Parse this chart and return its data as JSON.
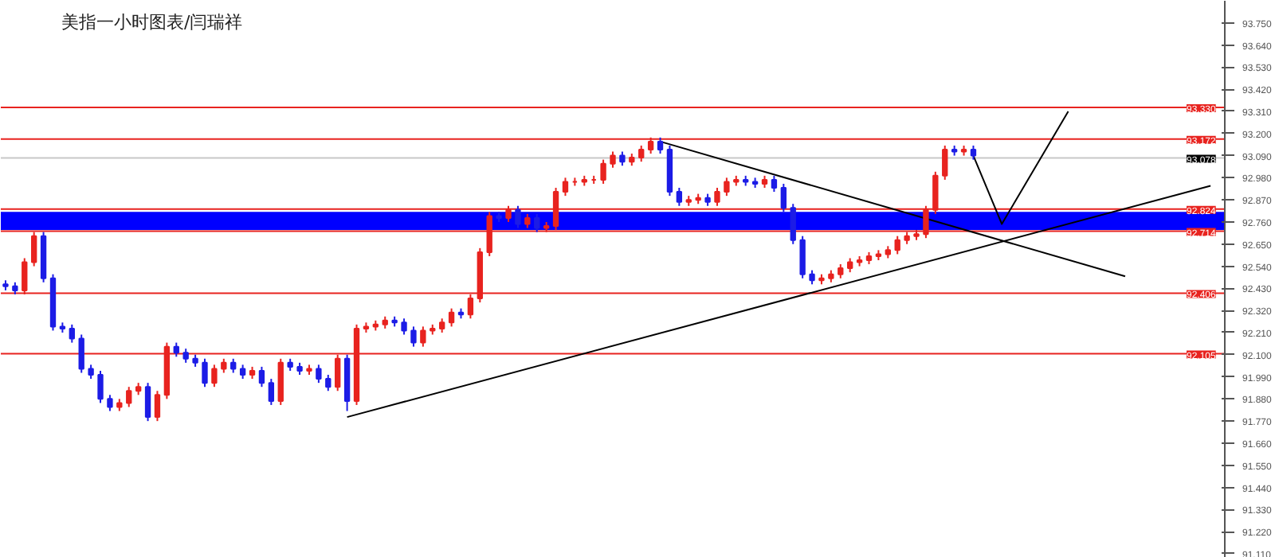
{
  "chart_data": {
    "type": "candlestick",
    "title": "美指一小时图表/闫瑞祥",
    "ylim": [
      91.09,
      93.86
    ],
    "yticks": [
      {
        "value": 91.11,
        "label": "91.110"
      },
      {
        "value": 91.22,
        "label": "91.220"
      },
      {
        "value": 91.33,
        "label": "91.330"
      },
      {
        "value": 91.44,
        "label": "91.440"
      },
      {
        "value": 91.55,
        "label": "91.550"
      },
      {
        "value": 91.66,
        "label": "91.660"
      },
      {
        "value": 91.77,
        "label": "91.770"
      },
      {
        "value": 91.88,
        "label": "91.880"
      },
      {
        "value": 91.99,
        "label": "91.990"
      },
      {
        "value": 92.1,
        "label": "92.100"
      },
      {
        "value": 92.21,
        "label": "92.210"
      },
      {
        "value": 92.32,
        "label": "92.320"
      },
      {
        "value": 92.43,
        "label": "92.430"
      },
      {
        "value": 92.54,
        "label": "92.540"
      },
      {
        "value": 92.65,
        "label": "92.650"
      },
      {
        "value": 92.76,
        "label": "92.760"
      },
      {
        "value": 92.87,
        "label": "92.870"
      },
      {
        "value": 92.98,
        "label": "92.980"
      },
      {
        "value": 93.09,
        "label": "93.090"
      },
      {
        "value": 93.2,
        "label": "93.200"
      },
      {
        "value": 93.31,
        "label": "93.310"
      },
      {
        "value": 93.42,
        "label": "93.420"
      },
      {
        "value": 93.53,
        "label": "93.530"
      },
      {
        "value": 93.64,
        "label": "93.640"
      },
      {
        "value": 93.75,
        "label": "93.750"
      }
    ],
    "tick_labels": "y",
    "grid": false,
    "colors": [
      "#1c1ce6",
      "#1c1ce6",
      "#e8231f",
      "#e8231f",
      "#1c1ce6",
      "#1c1ce6",
      "#1c1ce6",
      "#1c1ce6",
      "#1c1ce6",
      "#1c1ce6",
      "#1c1ce6",
      "#1c1ce6",
      "#e8231f",
      "#e8231f",
      "#e8231f",
      "#1c1ce6",
      "#e8231f",
      "#e8231f",
      "#1c1ce6",
      "#1c1ce6",
      "#1c1ce6",
      "#1c1ce6",
      "#e8231f",
      "#e8231f",
      "#1c1ce6",
      "#1c1ce6",
      "#e8231f",
      "#1c1ce6",
      "#1c1ce6",
      "#e8231f",
      "#1c1ce6",
      "#1c1ce6",
      "#e8231f",
      "#1c1ce6",
      "#1c1ce6",
      "#e8231f",
      "#1c1ce6",
      "#e8231f",
      "#e8231f",
      "#e8231f",
      "#e8231f",
      "#1c1ce6",
      "#1c1ce6",
      "#1c1ce6",
      "#e8231f",
      "#e8231f",
      "#e8231f",
      "#e8231f",
      "#1c1ce6",
      "#e8231f",
      "#e8231f",
      "#e8231f",
      "#1c1ce6",
      "#e8231f",
      "#1c1ce6",
      "#e8231f",
      "#1c1ce6",
      "#e8231f",
      "#e8231f",
      "#e8231f",
      "#e8231f",
      "#e8231f",
      "#e8231f",
      "#e8231f",
      "#e8231f",
      "#1c1ce6",
      "#e8231f",
      "#e8231f",
      "#e8231f",
      "#1c1ce6",
      "#1c1ce6",
      "#1c1ce6",
      "#e8231f",
      "#e8231f",
      "#1c1ce6",
      "#e8231f",
      "#e8231f",
      "#e8231f",
      "#1c1ce6",
      "#1c1ce6",
      "#e8231f",
      "#1c1ce6",
      "#1c1ce6",
      "#1c1ce6",
      "#1c1ce6",
      "#1c1ce6",
      "#e8231f",
      "#e8231f",
      "#e8231f",
      "#e8231f",
      "#e8231f",
      "#e8231f",
      "#e8231f",
      "#e8231f",
      "#e8231f",
      "#e8231f",
      "#e8231f",
      "#e8231f",
      "#e8231f",
      "#e8231f",
      "#1c1ce6",
      "#e8231f",
      "#1c1ce6",
      null,
      null,
      null,
      null,
      null,
      null,
      null,
      null,
      null,
      null,
      null,
      null,
      null,
      null,
      null,
      null,
      null,
      null,
      null,
      null,
      null,
      null,
      null,
      null,
      null,
      null
    ],
    "categories": [
      null,
      null,
      null,
      null,
      null,
      null,
      null,
      null,
      null,
      null,
      null,
      null,
      null,
      null,
      null,
      null,
      null,
      null,
      null,
      null,
      null,
      null,
      null,
      null,
      null,
      null,
      null,
      null,
      null,
      null,
      null,
      null,
      null,
      null,
      null,
      null,
      null,
      null,
      null,
      null,
      null,
      null,
      null,
      null,
      null,
      null,
      null,
      null,
      null,
      null,
      null,
      null,
      null,
      null,
      null,
      null,
      null,
      null,
      null,
      null,
      null,
      null,
      null,
      null,
      null,
      null,
      null,
      null,
      null,
      null,
      null,
      null,
      null,
      null,
      null,
      null,
      null,
      null,
      null,
      null,
      null,
      null,
      null,
      null,
      null,
      null,
      null,
      null,
      null,
      null,
      null,
      null,
      null,
      null,
      null,
      null,
      null,
      null,
      null,
      null,
      null,
      null,
      null,
      null,
      null,
      null,
      null,
      null,
      null,
      null,
      null,
      null,
      null,
      null,
      null,
      null,
      null,
      null,
      null,
      null,
      null,
      null,
      null,
      null,
      null,
      null,
      null,
      null,
      null
    ],
    "ohlc": [
      [
        92.45,
        92.47,
        92.42,
        92.44
      ],
      [
        92.44,
        92.46,
        92.4,
        92.42
      ],
      [
        92.42,
        92.58,
        92.4,
        92.56
      ],
      [
        92.56,
        92.71,
        92.54,
        92.69
      ],
      [
        92.69,
        92.71,
        92.46,
        92.48
      ],
      [
        92.48,
        92.5,
        92.22,
        92.24
      ],
      [
        92.24,
        92.26,
        92.21,
        92.23
      ],
      [
        92.23,
        92.25,
        92.16,
        92.18
      ],
      [
        92.18,
        92.2,
        92.01,
        92.03
      ],
      [
        92.03,
        92.05,
        91.98,
        92.0
      ],
      [
        92.0,
        92.02,
        91.86,
        91.88
      ],
      [
        91.88,
        91.9,
        91.82,
        91.84
      ],
      [
        91.84,
        91.88,
        91.82,
        91.86
      ],
      [
        91.86,
        91.94,
        91.84,
        91.92
      ],
      [
        91.92,
        91.96,
        91.9,
        91.94
      ],
      [
        91.94,
        91.96,
        91.77,
        91.79
      ],
      [
        91.79,
        91.92,
        91.77,
        91.9
      ],
      [
        91.9,
        92.16,
        91.88,
        92.14
      ],
      [
        92.14,
        92.16,
        92.09,
        92.11
      ],
      [
        92.11,
        92.13,
        92.06,
        92.08
      ],
      [
        92.08,
        92.1,
        92.04,
        92.06
      ],
      [
        92.06,
        92.08,
        91.94,
        91.96
      ],
      [
        91.96,
        92.05,
        91.94,
        92.03
      ],
      [
        92.03,
        92.08,
        92.01,
        92.06
      ],
      [
        92.06,
        92.08,
        92.01,
        92.03
      ],
      [
        92.03,
        92.05,
        91.98,
        92.0
      ],
      [
        92.0,
        92.04,
        91.98,
        92.02
      ],
      [
        92.02,
        92.04,
        91.94,
        91.96
      ],
      [
        91.96,
        91.98,
        91.85,
        91.87
      ],
      [
        91.87,
        92.08,
        91.85,
        92.06
      ],
      [
        92.06,
        92.08,
        92.02,
        92.04
      ],
      [
        92.04,
        92.06,
        92.0,
        92.02
      ],
      [
        92.02,
        92.05,
        92.0,
        92.03
      ],
      [
        92.03,
        92.05,
        91.96,
        91.98
      ],
      [
        91.98,
        92.0,
        91.92,
        91.94
      ],
      [
        91.94,
        92.1,
        91.92,
        92.08
      ],
      [
        92.08,
        92.1,
        91.82,
        91.87
      ],
      [
        91.87,
        92.25,
        91.85,
        92.23
      ],
      [
        92.23,
        92.26,
        92.21,
        92.24
      ],
      [
        92.24,
        92.27,
        92.22,
        92.25
      ],
      [
        92.25,
        92.29,
        92.23,
        92.27
      ],
      [
        92.27,
        92.29,
        92.24,
        92.26
      ],
      [
        92.26,
        92.28,
        92.2,
        92.22
      ],
      [
        92.22,
        92.24,
        92.14,
        92.16
      ],
      [
        92.16,
        92.24,
        92.14,
        92.22
      ],
      [
        92.22,
        92.25,
        92.2,
        92.23
      ],
      [
        92.23,
        92.28,
        92.21,
        92.26
      ],
      [
        92.26,
        92.33,
        92.24,
        92.31
      ],
      [
        92.31,
        92.33,
        92.28,
        92.3
      ],
      [
        92.3,
        92.4,
        92.28,
        92.38
      ],
      [
        92.38,
        92.63,
        92.36,
        92.61
      ],
      [
        92.61,
        92.81,
        92.59,
        92.79
      ],
      [
        92.79,
        92.81,
        92.76,
        92.78
      ],
      [
        92.78,
        92.84,
        92.76,
        92.82
      ],
      [
        92.82,
        92.84,
        92.73,
        92.75
      ],
      [
        92.75,
        92.8,
        92.73,
        92.78
      ],
      [
        92.78,
        92.8,
        92.71,
        92.73
      ],
      [
        92.73,
        92.76,
        92.71,
        92.74
      ],
      [
        92.74,
        92.93,
        92.72,
        92.91
      ],
      [
        92.91,
        92.98,
        92.89,
        92.96
      ],
      [
        92.96,
        92.98,
        92.94,
        92.96
      ],
      [
        92.96,
        92.99,
        92.94,
        92.97
      ],
      [
        92.97,
        92.99,
        92.95,
        92.97
      ],
      [
        92.97,
        93.07,
        92.95,
        93.05
      ],
      [
        93.05,
        93.11,
        93.03,
        93.09
      ],
      [
        93.09,
        93.11,
        93.04,
        93.06
      ],
      [
        93.06,
        93.1,
        93.04,
        93.08
      ],
      [
        93.08,
        93.14,
        93.06,
        93.12
      ],
      [
        93.12,
        93.18,
        93.1,
        93.16
      ],
      [
        93.16,
        93.18,
        93.1,
        93.12
      ],
      [
        93.12,
        93.14,
        92.89,
        92.91
      ],
      [
        92.91,
        92.93,
        92.84,
        92.86
      ],
      [
        92.86,
        92.89,
        92.84,
        92.87
      ],
      [
        92.87,
        92.9,
        92.85,
        92.88
      ],
      [
        92.88,
        92.9,
        92.84,
        92.86
      ],
      [
        92.86,
        92.93,
        92.84,
        92.91
      ],
      [
        92.91,
        92.98,
        92.89,
        92.96
      ],
      [
        92.96,
        92.99,
        92.94,
        92.97
      ],
      [
        92.97,
        92.99,
        92.94,
        92.96
      ],
      [
        92.96,
        92.98,
        92.93,
        92.95
      ],
      [
        92.95,
        92.99,
        92.93,
        92.97
      ],
      [
        92.97,
        92.99,
        92.91,
        92.93
      ],
      [
        92.93,
        92.95,
        92.81,
        92.83
      ],
      [
        92.83,
        92.85,
        92.65,
        92.67
      ],
      [
        92.67,
        92.69,
        92.48,
        92.5
      ],
      [
        92.5,
        92.52,
        92.45,
        92.47
      ],
      [
        92.47,
        92.5,
        92.45,
        92.48
      ],
      [
        92.48,
        92.52,
        92.46,
        92.5
      ],
      [
        92.5,
        92.55,
        92.48,
        92.53
      ],
      [
        92.53,
        92.58,
        92.51,
        92.56
      ],
      [
        92.56,
        92.59,
        92.54,
        92.57
      ],
      [
        92.57,
        92.61,
        92.55,
        92.59
      ],
      [
        92.59,
        92.62,
        92.57,
        92.6
      ],
      [
        92.6,
        92.64,
        92.58,
        92.62
      ],
      [
        92.62,
        92.69,
        92.6,
        92.67
      ],
      [
        92.67,
        92.71,
        92.65,
        92.69
      ],
      [
        92.69,
        92.72,
        92.67,
        92.7
      ],
      [
        92.7,
        92.84,
        92.68,
        92.82
      ],
      [
        92.82,
        93.01,
        92.8,
        92.99
      ],
      [
        92.99,
        93.14,
        92.97,
        93.12
      ],
      [
        93.12,
        93.14,
        93.09,
        93.11
      ],
      [
        93.11,
        93.14,
        93.09,
        93.12
      ],
      [
        93.12,
        93.14,
        93.07,
        93.09
      ],
      null,
      null,
      null,
      null,
      null,
      null,
      null,
      null,
      null,
      null,
      null,
      null,
      null,
      null,
      null,
      null,
      null,
      null,
      null,
      null,
      null,
      null,
      null,
      null,
      null,
      null
    ],
    "series": [
      {
        "type": "line",
        "color": "#000000",
        "values": [
          null,
          null,
          null,
          null,
          null,
          null,
          null,
          null,
          null,
          null,
          null,
          null,
          null,
          null,
          null,
          null,
          null,
          null,
          null,
          null,
          null,
          null,
          null,
          null,
          null,
          null,
          null,
          null,
          null,
          null,
          null,
          null,
          null,
          null,
          null,
          null,
          91.79,
          null,
          null,
          null,
          null,
          null,
          null,
          null,
          null,
          null,
          null,
          null,
          null,
          null,
          null,
          null,
          null,
          null,
          null,
          null,
          null,
          null,
          null,
          null,
          null,
          null,
          null,
          null,
          null,
          null,
          null,
          null,
          null,
          null,
          null,
          null,
          null,
          null,
          null,
          null,
          null,
          null,
          null,
          null,
          null,
          null,
          null,
          null,
          null,
          null,
          null,
          null,
          null,
          null,
          null,
          null,
          null,
          null,
          null,
          null,
          null,
          null,
          null,
          null,
          null,
          null,
          null,
          null,
          null,
          null,
          null,
          null,
          null,
          null,
          null,
          null,
          null,
          null,
          null,
          null,
          null,
          null,
          null,
          null,
          null,
          null,
          null,
          null,
          null,
          null,
          null,
          92.94,
          null
        ]
      },
      {
        "type": "line",
        "color": "#000000",
        "values": [
          null,
          null,
          null,
          null,
          null,
          null,
          null,
          null,
          null,
          null,
          null,
          null,
          null,
          null,
          null,
          null,
          null,
          null,
          null,
          null,
          null,
          null,
          null,
          null,
          null,
          null,
          null,
          null,
          null,
          null,
          null,
          null,
          null,
          null,
          null,
          null,
          null,
          null,
          null,
          null,
          null,
          null,
          null,
          null,
          null,
          null,
          null,
          null,
          null,
          null,
          null,
          null,
          null,
          null,
          null,
          null,
          null,
          null,
          null,
          null,
          null,
          null,
          null,
          null,
          null,
          null,
          null,
          null,
          null,
          93.16,
          null,
          null,
          null,
          null,
          null,
          null,
          null,
          null,
          null,
          null,
          null,
          null,
          null,
          null,
          null,
          null,
          null,
          null,
          null,
          null,
          null,
          null,
          null,
          null,
          null,
          null,
          null,
          null,
          null,
          null,
          null,
          null,
          null,
          null,
          null,
          null,
          null,
          null,
          null,
          null,
          null,
          null,
          null,
          null,
          null,
          null,
          null,
          null,
          92.49,
          null,
          null,
          null,
          null,
          null,
          null,
          null,
          null,
          null,
          null
        ]
      },
      {
        "type": "line",
        "color": "#000000",
        "values": [
          null,
          null,
          null,
          null,
          null,
          null,
          null,
          null,
          null,
          null,
          null,
          null,
          null,
          null,
          null,
          null,
          null,
          null,
          null,
          null,
          null,
          null,
          null,
          null,
          null,
          null,
          null,
          null,
          null,
          null,
          null,
          null,
          null,
          null,
          null,
          null,
          null,
          null,
          null,
          null,
          null,
          null,
          null,
          null,
          null,
          null,
          null,
          null,
          null,
          null,
          null,
          null,
          null,
          null,
          null,
          null,
          null,
          null,
          null,
          null,
          null,
          null,
          null,
          null,
          null,
          null,
          null,
          null,
          null,
          null,
          null,
          null,
          null,
          null,
          null,
          null,
          null,
          null,
          null,
          null,
          null,
          null,
          null,
          null,
          null,
          null,
          null,
          null,
          null,
          null,
          null,
          null,
          null,
          null,
          null,
          null,
          null,
          null,
          null,
          null,
          null,
          null,
          93.09,
          null,
          null,
          92.75,
          null,
          null,
          null,
          null,
          null,
          null,
          93.31,
          null,
          null,
          null,
          null,
          null,
          null,
          null,
          null,
          null,
          null,
          null,
          null,
          null,
          null,
          null,
          null
        ]
      }
    ],
    "bands": [
      {
        "axis": "y",
        "from": 92.72,
        "to": 92.81,
        "color": "#0000ff"
      }
    ],
    "ref_lines": [
      {
        "axis": "y",
        "value": 93.33,
        "label": "93.330",
        "color": "#e8231f"
      },
      {
        "axis": "y",
        "value": 93.172,
        "label": "93.172",
        "color": "#e8231f"
      },
      {
        "axis": "y",
        "value": 93.078,
        "label": "93.078",
        "color": "#c8c8c8"
      },
      {
        "axis": "y",
        "value": 92.824,
        "label": "92.824",
        "color": "#e8231f"
      },
      {
        "axis": "y",
        "value": 92.714,
        "label": "92.714",
        "color": "#e8231f"
      },
      {
        "axis": "y",
        "value": 92.406,
        "label": "92.406",
        "color": "#e8231f"
      },
      {
        "axis": "y",
        "value": 92.105,
        "label": "92.105",
        "color": "#e8231f"
      }
    ]
  }
}
